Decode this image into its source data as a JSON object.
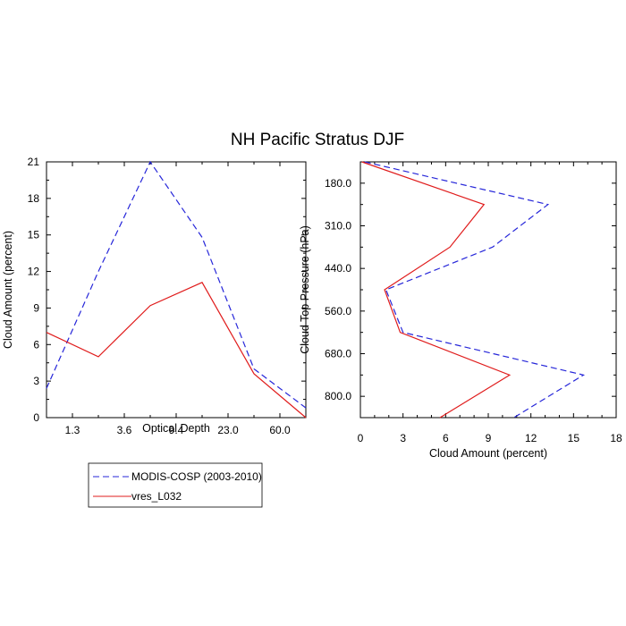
{
  "title": "NH Pacific Stratus DJF",
  "colors": {
    "modis": "#2626d9",
    "model": "#e01c1c",
    "axis": "#000000"
  },
  "legend": {
    "placement": "bottom-left",
    "entries": [
      "MODIS-COSP (2003-2010)",
      "vres_L032"
    ]
  },
  "chart_data": [
    {
      "type": "line",
      "xlabel": "Optical Depth",
      "ylabel": "Cloud Amount (percent)",
      "x_ticks": [
        "1.3",
        "3.6",
        "9.4",
        "23.0",
        "60.0"
      ],
      "y_ticks": [
        "0",
        "3",
        "6",
        "9",
        "12",
        "15",
        "18",
        "21"
      ],
      "ylim": [
        0,
        21
      ],
      "series": [
        {
          "name": "MODIS-COSP (2003-2010)",
          "style": "dashed",
          "color": "#2626d9",
          "values": [
            2.4,
            12.0,
            21.0,
            14.8,
            4.0,
            0.8
          ]
        },
        {
          "name": "vres_L032",
          "style": "solid",
          "color": "#e01c1c",
          "values": [
            7.0,
            5.0,
            9.2,
            11.1,
            3.6,
            0.0
          ]
        }
      ]
    },
    {
      "type": "line",
      "xlabel": "Cloud Amount (percent)",
      "ylabel": "Cloud Top Pressure (hPa)",
      "x_ticks": [
        "0",
        "3",
        "6",
        "9",
        "12",
        "15",
        "18"
      ],
      "y_ticks": [
        "180.0",
        "310.0",
        "440.0",
        "560.0",
        "680.0",
        "800.0"
      ],
      "xlim": [
        0,
        18
      ],
      "series": [
        {
          "name": "MODIS-COSP (2003-2010)",
          "style": "dashed",
          "color": "#2626d9",
          "values": [
            0.3,
            13.2,
            9.3,
            1.8,
            3.0,
            15.7,
            10.8
          ]
        },
        {
          "name": "vres_L032",
          "style": "solid",
          "color": "#e01c1c",
          "values": [
            0.1,
            8.7,
            6.3,
            1.7,
            2.8,
            10.5,
            5.6
          ]
        }
      ]
    }
  ]
}
